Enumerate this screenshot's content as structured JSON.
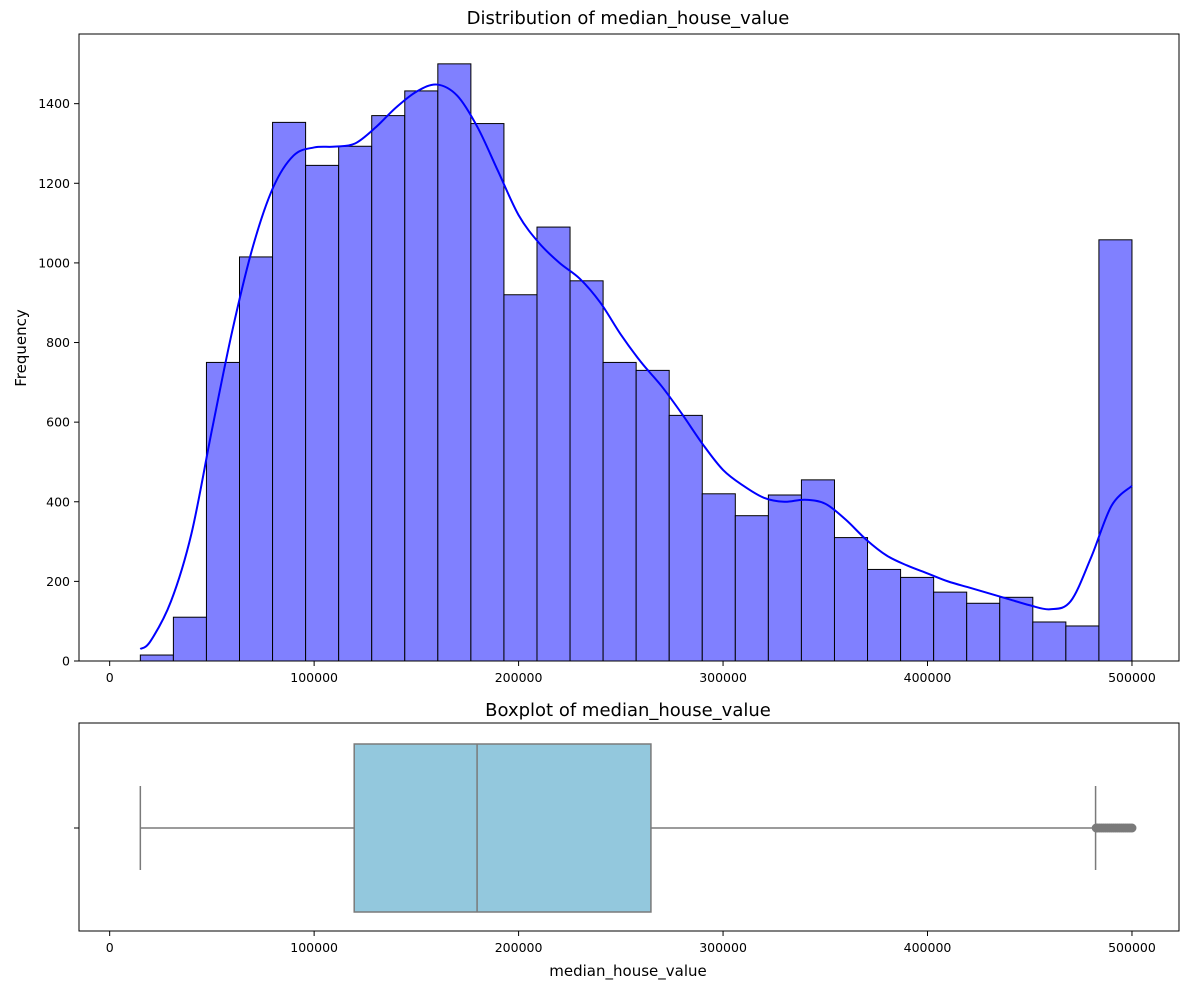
{
  "chart_data": [
    {
      "type": "bar",
      "title": "Distribution of median_house_value",
      "xlabel": "",
      "ylabel": "Frequency",
      "xlim": [
        -15000,
        523000
      ],
      "ylim": [
        0,
        1575
      ],
      "xticks": [
        0,
        100000,
        200000,
        300000,
        400000,
        500000
      ],
      "xtick_labels": [
        "0",
        "100000",
        "200000",
        "300000",
        "400000",
        "500000"
      ],
      "yticks": [
        0,
        200,
        400,
        600,
        800,
        1000,
        1200,
        1400
      ],
      "ytick_labels": [
        "0",
        "200",
        "400",
        "600",
        "800",
        "1000",
        "1200",
        "1400"
      ],
      "grid": false,
      "bin_start": 14999,
      "bin_width": 16166.6,
      "values": [
        15,
        110,
        750,
        1015,
        1353,
        1245,
        1293,
        1370,
        1432,
        1500,
        1350,
        920,
        1090,
        955,
        750,
        730,
        617,
        420,
        365,
        417,
        455,
        310,
        230,
        210,
        173,
        145,
        160,
        98,
        88,
        1058
      ],
      "bar_color": "#8080ff",
      "edge_color": "#000000",
      "kde": {
        "color": "#0000ff",
        "x": [
          14999,
          20000,
          30000,
          40000,
          50000,
          60000,
          70000,
          80000,
          90000,
          100000,
          110000,
          120000,
          130000,
          140000,
          150000,
          160000,
          170000,
          180000,
          190000,
          200000,
          210000,
          220000,
          230000,
          240000,
          250000,
          260000,
          270000,
          280000,
          290000,
          300000,
          310000,
          320000,
          330000,
          340000,
          350000,
          360000,
          370000,
          380000,
          390000,
          400000,
          410000,
          420000,
          430000,
          440000,
          450000,
          460000,
          470000,
          480000,
          490000,
          500001
        ],
        "y": [
          30,
          50,
          150,
          320,
          580,
          830,
          1040,
          1190,
          1270,
          1290,
          1292,
          1300,
          1340,
          1390,
          1430,
          1448,
          1420,
          1340,
          1230,
          1120,
          1050,
          1000,
          960,
          900,
          820,
          750,
          690,
          620,
          545,
          480,
          440,
          410,
          400,
          405,
          395,
          355,
          305,
          265,
          240,
          220,
          200,
          185,
          170,
          155,
          140,
          130,
          150,
          260,
          390,
          440
        ]
      }
    },
    {
      "type": "box",
      "title": "Boxplot of median_house_value",
      "xlabel": "median_house_value",
      "xlim": [
        -15000,
        523000
      ],
      "xticks": [
        0,
        100000,
        200000,
        300000,
        400000,
        500000
      ],
      "xtick_labels": [
        "0",
        "100000",
        "200000",
        "300000",
        "400000",
        "500000"
      ],
      "grid": false,
      "box_color": "#93c8dd",
      "line_color": "#7a7a7a",
      "whisker_low": 14999,
      "q1": 119600,
      "median": 179700,
      "q3": 264725,
      "whisker_high": 482200,
      "outliers": [
        482500,
        483000,
        484000,
        485000,
        486000,
        487000,
        488000,
        489000,
        490000,
        491000,
        492000,
        493000,
        494000,
        495000,
        496000,
        497000,
        498000,
        499000,
        500001
      ]
    }
  ]
}
